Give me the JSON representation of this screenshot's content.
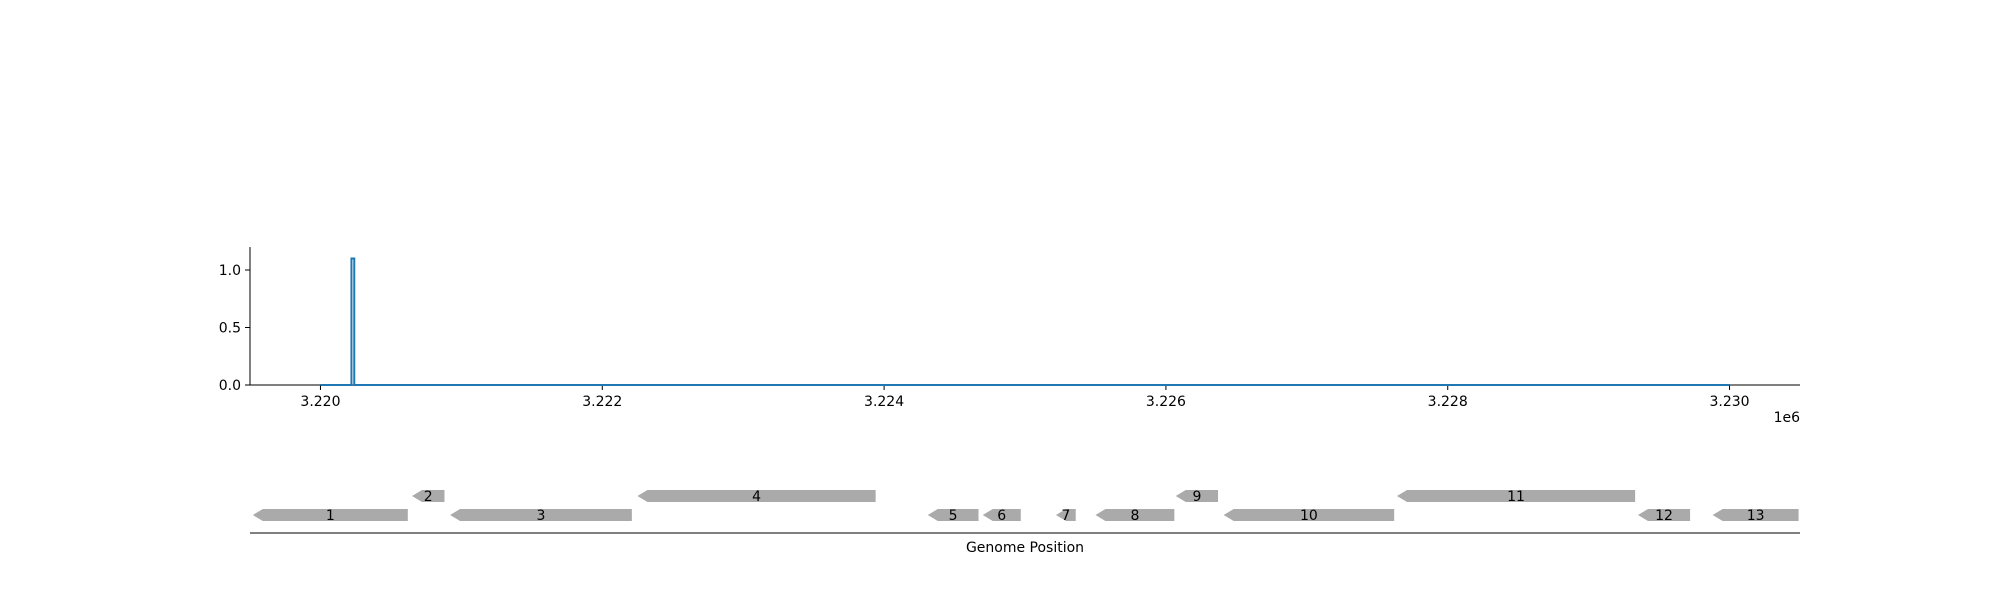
{
  "chart_data": [
    {
      "type": "line",
      "title": "",
      "xlabel": "",
      "ylabel": "",
      "x_offset_label": "1e6",
      "xlim": [
        3219500,
        3230500
      ],
      "ylim": [
        0,
        1.2
      ],
      "x_ticks": [
        3220000,
        3222000,
        3224000,
        3226000,
        3228000,
        3230000
      ],
      "x_tick_labels": [
        "3.220",
        "3.222",
        "3.224",
        "3.226",
        "3.228",
        "3.230"
      ],
      "y_ticks": [
        0.0,
        0.5,
        1.0
      ],
      "y_tick_labels": [
        "0.0",
        "0.5",
        "1.0"
      ],
      "grid": false,
      "series": [
        {
          "color": "#1f77b4",
          "x": [
            3220000,
            3220220,
            3220220,
            3220240,
            3220240,
            3230000
          ],
          "y": [
            0,
            0,
            1.1,
            1.1,
            0,
            0
          ]
        }
      ]
    },
    {
      "type": "gene_track",
      "title": "",
      "xlabel": "Genome Position",
      "xlim": [
        3219500,
        3230500
      ],
      "gene_color": "#aaaaaa",
      "genes": [
        {
          "label": "1",
          "start": 3219520,
          "end": 3220620,
          "strand": "-",
          "row": 0
        },
        {
          "label": "2",
          "start": 3220650,
          "end": 3220880,
          "strand": "-",
          "row": 1
        },
        {
          "label": "3",
          "start": 3220920,
          "end": 3222210,
          "strand": "-",
          "row": 0
        },
        {
          "label": "4",
          "start": 3222250,
          "end": 3223940,
          "strand": "-",
          "row": 1
        },
        {
          "label": "5",
          "start": 3224310,
          "end": 3224670,
          "strand": "-",
          "row": 0
        },
        {
          "label": "6",
          "start": 3224700,
          "end": 3224970,
          "strand": "-",
          "row": 0
        },
        {
          "label": "7",
          "start": 3225220,
          "end": 3225360,
          "strand": "-",
          "row": 0
        },
        {
          "label": "8",
          "start": 3225500,
          "end": 3226060,
          "strand": "-",
          "row": 0
        },
        {
          "label": "9",
          "start": 3226070,
          "end": 3226370,
          "strand": "-",
          "row": 1
        },
        {
          "label": "10",
          "start": 3226410,
          "end": 3227620,
          "strand": "-",
          "row": 0
        },
        {
          "label": "11",
          "start": 3227640,
          "end": 3229330,
          "strand": "-",
          "row": 1
        },
        {
          "label": "12",
          "start": 3229350,
          "end": 3229720,
          "strand": "-",
          "row": 0
        },
        {
          "label": "13",
          "start": 3229880,
          "end": 3230490,
          "strand": "-",
          "row": 0
        }
      ]
    }
  ]
}
